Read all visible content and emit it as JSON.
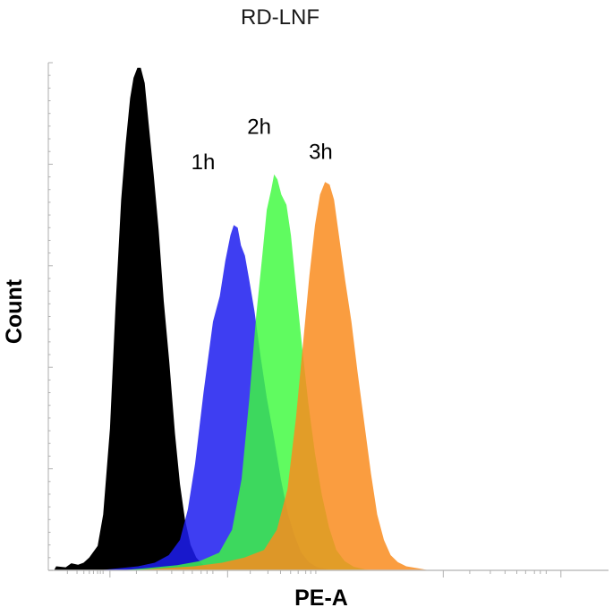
{
  "chart_data": {
    "type": "area",
    "title": "RD-LNF",
    "xlabel": "PE-A",
    "ylabel": "Count",
    "xlim": [
      0,
      100
    ],
    "ylim": [
      0,
      100
    ],
    "grid": false,
    "legend": "none",
    "series": [
      {
        "key": "control",
        "color": "#000000",
        "opacity": 1.0,
        "points": [
          [
            0,
            0
          ],
          [
            1,
            0
          ],
          [
            1.4,
            0.8
          ],
          [
            3.1,
            0.6
          ],
          [
            4.1,
            1.4
          ],
          [
            5.3,
            1.1
          ],
          [
            6.3,
            1.5
          ],
          [
            7.3,
            2.5
          ],
          [
            8.8,
            4.8
          ],
          [
            9.8,
            11
          ],
          [
            11.0,
            28
          ],
          [
            12.0,
            52
          ],
          [
            13.0,
            73
          ],
          [
            13.8,
            84
          ],
          [
            14.6,
            93
          ],
          [
            15.2,
            97
          ],
          [
            15.9,
            99
          ],
          [
            16.5,
            99
          ],
          [
            17.2,
            96
          ],
          [
            17.9,
            88
          ],
          [
            18.8,
            78
          ],
          [
            19.7,
            67
          ],
          [
            20.6,
            53
          ],
          [
            21.6,
            41
          ],
          [
            22.6,
            27
          ],
          [
            23.5,
            17
          ],
          [
            24.4,
            10
          ],
          [
            25.4,
            5
          ],
          [
            26.4,
            2.5
          ],
          [
            27.5,
            1.2
          ],
          [
            28.6,
            0.4
          ],
          [
            29.5,
            0
          ]
        ]
      },
      {
        "key": "1h",
        "name": "1h",
        "color": "#1c1cf0",
        "opacity": 0.85,
        "points": [
          [
            9,
            0
          ],
          [
            12.5,
            0.4
          ],
          [
            16,
            0.8
          ],
          [
            19,
            1.5
          ],
          [
            21.5,
            3
          ],
          [
            23.5,
            6
          ],
          [
            24.9,
            12
          ],
          [
            26.2,
            21
          ],
          [
            27.7,
            35
          ],
          [
            29.4,
            49
          ],
          [
            30.6,
            54
          ],
          [
            31.6,
            61
          ],
          [
            32.5,
            66
          ],
          [
            33.1,
            68
          ],
          [
            33.8,
            67.5
          ],
          [
            34.4,
            64
          ],
          [
            35.1,
            62
          ],
          [
            35.9,
            57
          ],
          [
            36.8,
            51
          ],
          [
            37.9,
            42
          ],
          [
            39.0,
            34
          ],
          [
            40.3,
            26
          ],
          [
            41.5,
            18
          ],
          [
            42.8,
            11
          ],
          [
            43.9,
            7
          ],
          [
            45.1,
            3.6
          ],
          [
            46.5,
            1.6
          ],
          [
            48,
            0.6
          ],
          [
            50,
            0.2
          ],
          [
            52,
            0
          ]
        ]
      },
      {
        "key": "2h",
        "name": "2h",
        "color": "#3dfa3d",
        "opacity": 0.82,
        "points": [
          [
            13,
            0
          ],
          [
            18,
            0.5
          ],
          [
            23,
            1
          ],
          [
            27,
            1.8
          ],
          [
            30.5,
            3.5
          ],
          [
            32.8,
            8
          ],
          [
            34.5,
            18
          ],
          [
            35.9,
            34
          ],
          [
            37.1,
            50
          ],
          [
            38.2,
            62
          ],
          [
            39.0,
            71
          ],
          [
            39.8,
            75
          ],
          [
            40.3,
            78
          ],
          [
            40.9,
            77
          ],
          [
            41.6,
            74
          ],
          [
            42.5,
            72
          ],
          [
            43.3,
            66
          ],
          [
            44.2,
            56
          ],
          [
            45.3,
            44
          ],
          [
            46.4,
            33
          ],
          [
            47.6,
            23
          ],
          [
            48.8,
            15
          ],
          [
            50.1,
            8.5
          ],
          [
            51.4,
            4
          ],
          [
            52.9,
            1.8
          ],
          [
            54.5,
            0.7
          ],
          [
            56.5,
            0.2
          ],
          [
            58,
            0
          ]
        ]
      },
      {
        "key": "3h",
        "name": "3h",
        "color": "#f98c1f",
        "opacity": 0.85,
        "points": [
          [
            15,
            0
          ],
          [
            20,
            0.4
          ],
          [
            26,
            0.8
          ],
          [
            31,
            1.5
          ],
          [
            35,
            2.5
          ],
          [
            38.5,
            4
          ],
          [
            40.8,
            8
          ],
          [
            42.7,
            16
          ],
          [
            44.2,
            30
          ],
          [
            45.5,
            45
          ],
          [
            46.6,
            58
          ],
          [
            47.6,
            68
          ],
          [
            48.5,
            74
          ],
          [
            49.4,
            76.5
          ],
          [
            50.2,
            76
          ],
          [
            51.0,
            73
          ],
          [
            52.0,
            65
          ],
          [
            53.0,
            57
          ],
          [
            54.1,
            49
          ],
          [
            55.2,
            39
          ],
          [
            56.4,
            29
          ],
          [
            57.6,
            19
          ],
          [
            58.7,
            11
          ],
          [
            59.9,
            6
          ],
          [
            61.1,
            3
          ],
          [
            62.4,
            1.6
          ],
          [
            63.9,
            0.8
          ],
          [
            66,
            0.4
          ],
          [
            68,
            0
          ]
        ]
      }
    ]
  }
}
